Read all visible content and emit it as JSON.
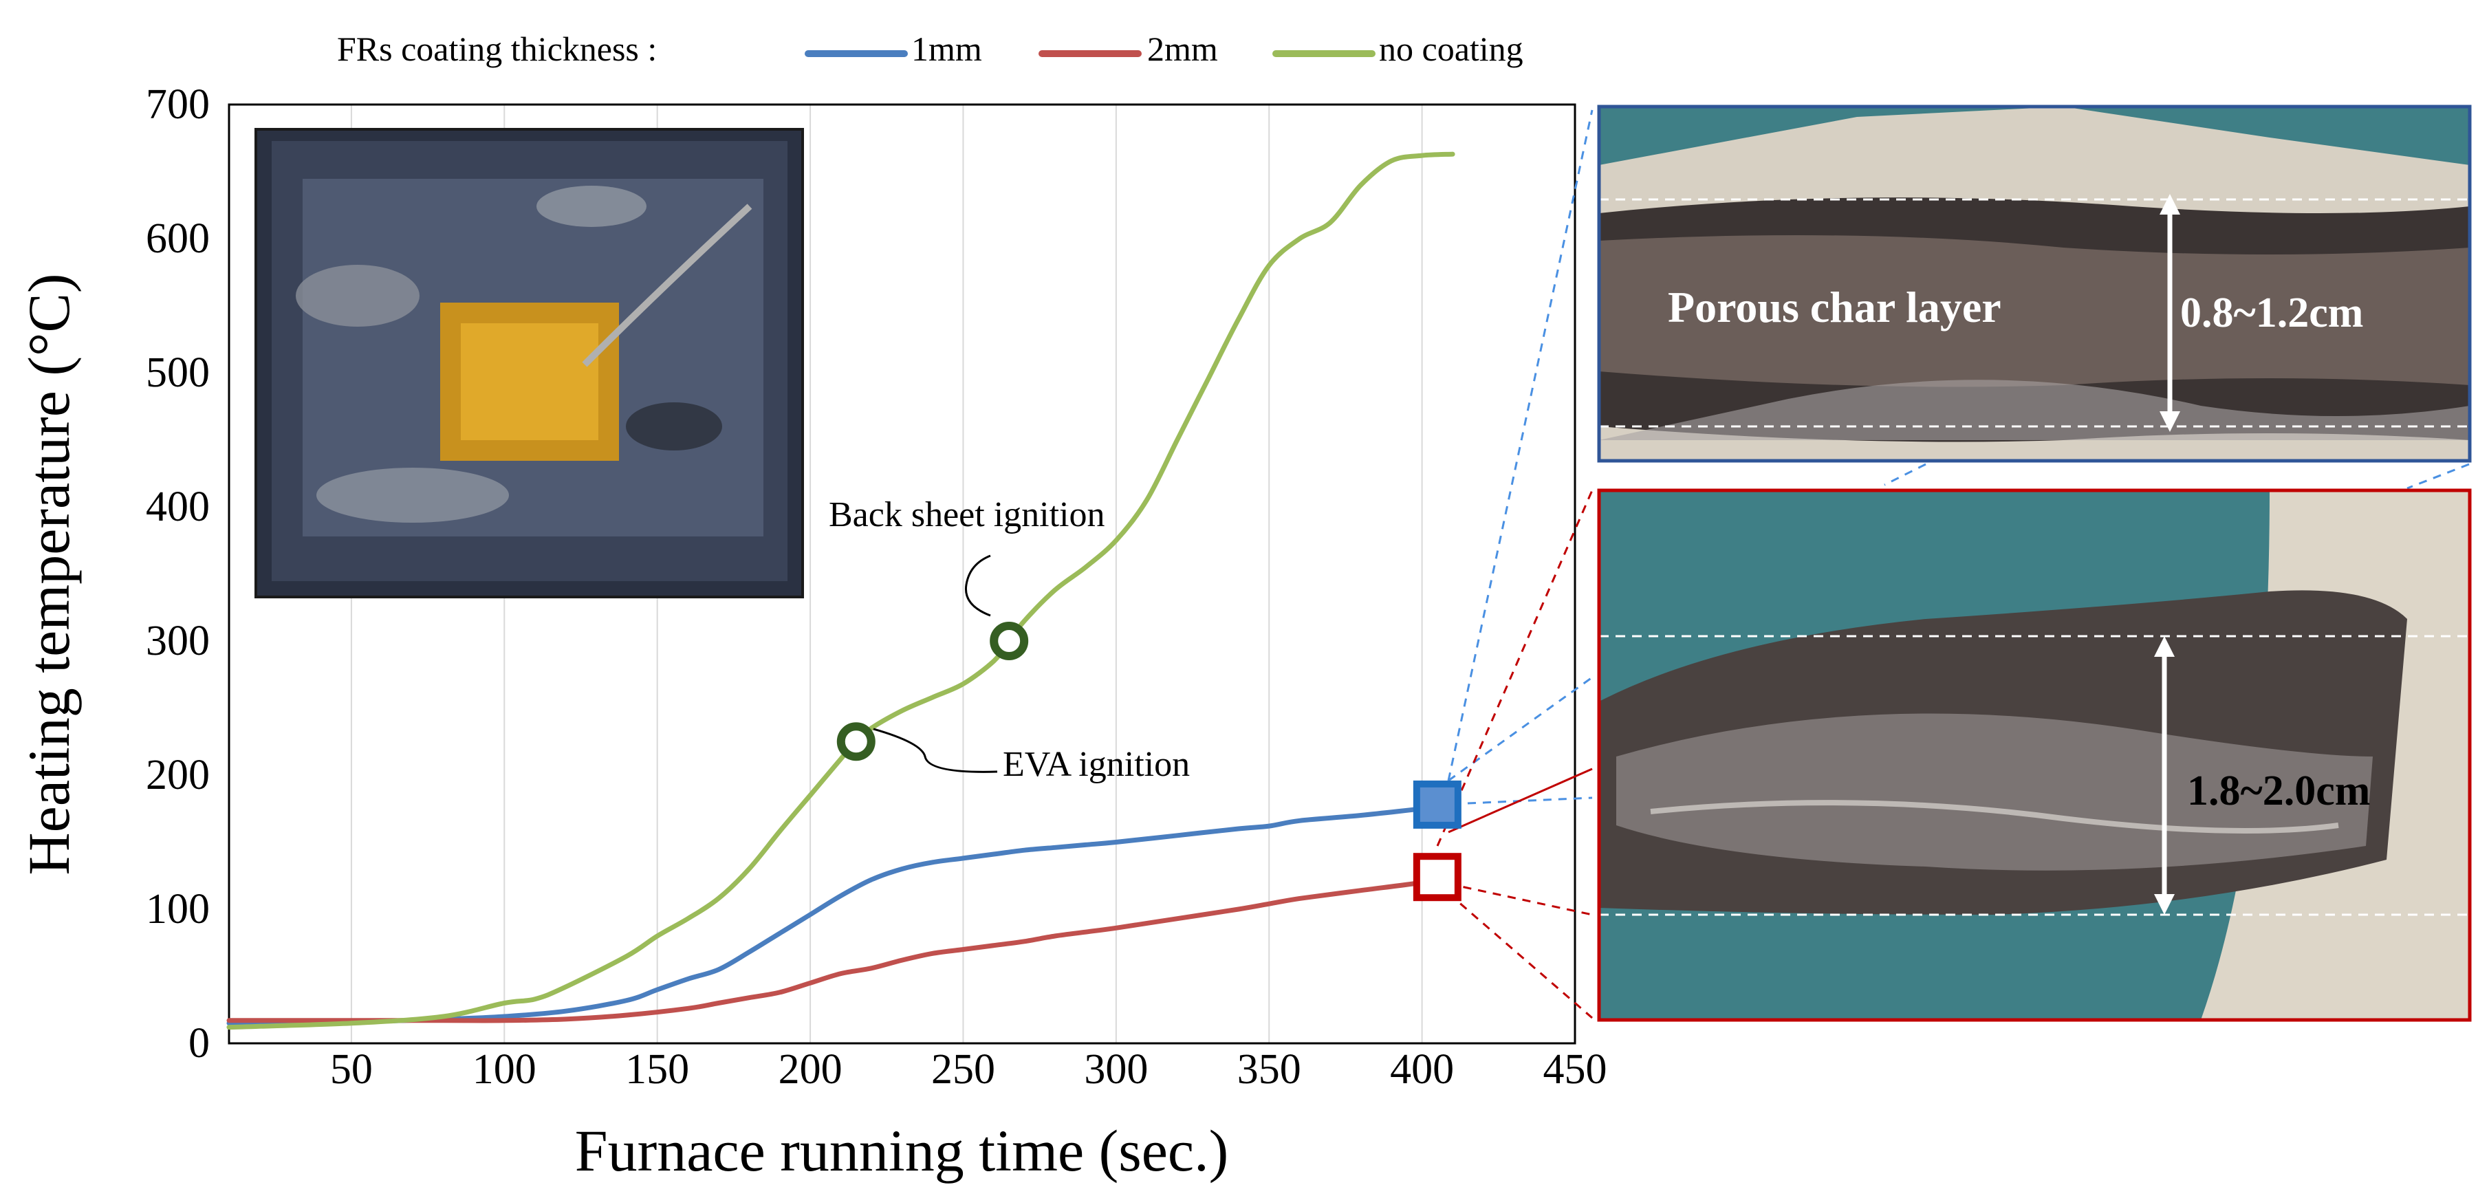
{
  "chart_data": {
    "type": "line",
    "xlabel": "Furnace running time (sec.)",
    "ylabel": "Heating temperature (°C)",
    "xlim": [
      10,
      450
    ],
    "ylim": [
      0,
      700
    ],
    "xticks": [
      50,
      100,
      150,
      200,
      250,
      300,
      350,
      400,
      450
    ],
    "yticks": [
      0,
      100,
      200,
      300,
      400,
      500,
      600,
      700
    ],
    "grid": "vertical",
    "legend": {
      "title": "FRs coating thickness :",
      "position": "top"
    },
    "series": [
      {
        "name": "1mm",
        "color": "#4a7ebf",
        "x": [
          10,
          50,
          80,
          100,
          120,
          140,
          150,
          160,
          170,
          180,
          190,
          200,
          210,
          220,
          230,
          240,
          250,
          260,
          270,
          280,
          290,
          300,
          320,
          340,
          350,
          360,
          380,
          400,
          410
        ],
        "y": [
          15,
          16,
          18,
          20,
          24,
          32,
          40,
          48,
          55,
          68,
          82,
          96,
          110,
          122,
          130,
          135,
          138,
          141,
          144,
          146,
          148,
          150,
          155,
          160,
          162,
          166,
          170,
          175,
          178
        ]
      },
      {
        "name": "2mm",
        "color": "#c0504d",
        "x": [
          10,
          50,
          80,
          100,
          120,
          140,
          160,
          170,
          180,
          190,
          200,
          210,
          220,
          230,
          240,
          250,
          260,
          270,
          280,
          290,
          300,
          320,
          340,
          350,
          360,
          380,
          400,
          410
        ],
        "y": [
          17,
          17,
          17,
          17,
          18,
          21,
          26,
          30,
          34,
          38,
          45,
          52,
          56,
          62,
          67,
          70,
          73,
          76,
          80,
          83,
          86,
          93,
          100,
          104,
          108,
          114,
          120,
          125
        ]
      },
      {
        "name": "no coating",
        "color": "#9bbb59",
        "x": [
          10,
          50,
          80,
          100,
          110,
          120,
          140,
          150,
          160,
          170,
          180,
          190,
          200,
          210,
          215,
          220,
          230,
          240,
          250,
          260,
          265,
          270,
          280,
          290,
          300,
          310,
          320,
          330,
          340,
          350,
          360,
          370,
          380,
          390,
          400,
          410
        ],
        "y": [
          12,
          15,
          20,
          30,
          33,
          42,
          65,
          80,
          93,
          108,
          130,
          158,
          185,
          212,
          225,
          235,
          248,
          258,
          268,
          285,
          300,
          315,
          338,
          355,
          375,
          405,
          450,
          495,
          540,
          580,
          600,
          612,
          640,
          658,
          662,
          663
        ]
      }
    ],
    "annotations": [
      {
        "text": "EVA ignition",
        "x": 215,
        "y": 225
      },
      {
        "text": "Back sheet ignition",
        "x": 265,
        "y": 300
      }
    ],
    "end_markers": [
      {
        "series": "1mm",
        "x": 405,
        "y": 178
      },
      {
        "series": "2mm",
        "x": 405,
        "y": 124
      }
    ]
  },
  "photos": {
    "top_label": "Porous char layer",
    "top_measure": "0.8~1.2cm",
    "bottom_measure": "1.8~2.0cm"
  },
  "colors": {
    "one_mm_box": "#1f6fbf",
    "two_mm_box": "#c00000",
    "ignition_marker": "#355e22",
    "top_photo_border": "#2f5597",
    "bottom_photo_border": "#c00000"
  }
}
